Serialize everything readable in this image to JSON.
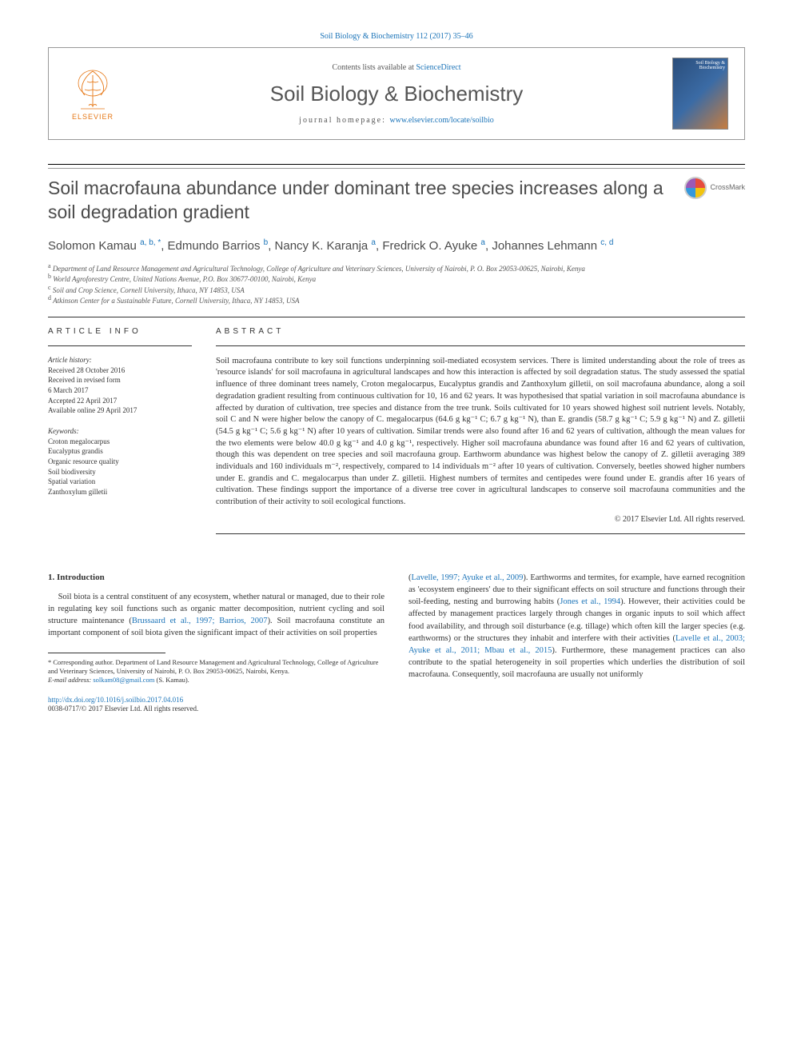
{
  "top_citation": "Soil Biology & Biochemistry 112 (2017) 35–46",
  "header": {
    "contents_prefix": "Contents lists available at ",
    "contents_link": "ScienceDirect",
    "journal_name": "Soil Biology & Biochemistry",
    "homepage_prefix": "journal homepage: ",
    "homepage_url": "www.elsevier.com/locate/soilbio",
    "publisher": "ELSEVIER",
    "cover_title": "Soil Biology & Biochemistry"
  },
  "crossmark_label": "CrossMark",
  "title": "Soil macrofauna abundance under dominant tree species increases along a soil degradation gradient",
  "authors_html": "Solomon Kamau <sup>a, b, *</sup>, Edmundo Barrios <sup>b</sup>, Nancy K. Karanja <sup>a</sup>, Fredrick O. Ayuke <sup>a</sup>, Johannes Lehmann <sup>c, d</sup>",
  "affiliations": [
    {
      "mark": "a",
      "text": "Department of Land Resource Management and Agricultural Technology, College of Agriculture and Veterinary Sciences, University of Nairobi, P. O. Box 29053-00625, Nairobi, Kenya"
    },
    {
      "mark": "b",
      "text": "World Agroforestry Centre, United Nations Avenue, P.O. Box 30677-00100, Nairobi, Kenya"
    },
    {
      "mark": "c",
      "text": "Soil and Crop Science, Cornell University, Ithaca, NY 14853, USA"
    },
    {
      "mark": "d",
      "text": "Atkinson Center for a Sustainable Future, Cornell University, Ithaca, NY 14853, USA"
    }
  ],
  "article_info": {
    "heading": "ARTICLE INFO",
    "history_label": "Article history:",
    "history": [
      "Received 28 October 2016",
      "Received in revised form",
      "6 March 2017",
      "Accepted 22 April 2017",
      "Available online 29 April 2017"
    ],
    "keywords_label": "Keywords:",
    "keywords": [
      "Croton megalocarpus",
      "Eucalyptus grandis",
      "Organic resource quality",
      "Soil biodiversity",
      "Spatial variation",
      "Zanthoxylum gilletii"
    ]
  },
  "abstract": {
    "heading": "ABSTRACT",
    "text": "Soil macrofauna contribute to key soil functions underpinning soil-mediated ecosystem services. There is limited understanding about the role of trees as 'resource islands' for soil macrofauna in agricultural landscapes and how this interaction is affected by soil degradation status. The study assessed the spatial influence of three dominant trees namely, Croton megalocarpus, Eucalyptus grandis and Zanthoxylum gilletii, on soil macrofauna abundance, along a soil degradation gradient resulting from continuous cultivation for 10, 16 and 62 years. It was hypothesised that spatial variation in soil macrofauna abundance is affected by duration of cultivation, tree species and distance from the tree trunk. Soils cultivated for 10 years showed highest soil nutrient levels. Notably, soil C and N were higher below the canopy of C. megalocarpus (64.6 g kg⁻¹ C; 6.7 g kg⁻¹ N), than E. grandis (58.7 g kg⁻¹ C; 5.9 g kg⁻¹ N) and Z. gilletii (54.5 g kg⁻¹ C; 5.6 g kg⁻¹ N) after 10 years of cultivation. Similar trends were also found after 16 and 62 years of cultivation, although the mean values for the two elements were below 40.0 g kg⁻¹ and 4.0 g kg⁻¹, respectively. Higher soil macrofauna abundance was found after 16 and 62 years of cultivation, though this was dependent on tree species and soil macrofauna group. Earthworm abundance was highest below the canopy of Z. gilletii averaging 389 individuals and 160 individuals m⁻², respectively, compared to 14 individuals m⁻² after 10 years of cultivation. Conversely, beetles showed higher numbers under E. grandis and C. megalocarpus than under Z. gilletii. Highest numbers of termites and centipedes were found under E. grandis after 16 years of cultivation. These findings support the importance of a diverse tree cover in agricultural landscapes to conserve soil macrofauna communities and the contribution of their activity to soil ecological functions.",
    "copyright": "© 2017 Elsevier Ltd. All rights reserved."
  },
  "body": {
    "section_heading": "1. Introduction",
    "col1_p1": "Soil biota is a central constituent of any ecosystem, whether natural or managed, due to their role in regulating key soil functions such as organic matter decomposition, nutrient cycling and soil structure maintenance (",
    "col1_cite1": "Brussaard et al., 1997; Barrios, 2007",
    "col1_p1b": "). Soil macrofauna constitute an important component of soil biota given the significant impact of their activities on soil properties",
    "col2_p1a": "(",
    "col2_cite1": "Lavelle, 1997; Ayuke et al., 2009",
    "col2_p1b": "). Earthworms and termites, for example, have earned recognition as 'ecosystem engineers' due to their significant effects on soil structure and functions through their soil-feeding, nesting and burrowing habits (",
    "col2_cite2": "Jones et al., 1994",
    "col2_p1c": "). However, their activities could be affected by management practices largely through changes in organic inputs to soil which affect food availability, and through soil disturbance (e.g. tillage) which often kill the larger species (e.g. earthworms) or the structures they inhabit and interfere with their activities (",
    "col2_cite3": "Lavelle et al., 2003; Ayuke et al., 2011; Mbau et al., 2015",
    "col2_p1d": "). Furthermore, these management practices can also contribute to the spatial heterogeneity in soil properties which underlies the distribution of soil macrofauna. Consequently, soil macrofauna are usually not uniformly"
  },
  "footnote": {
    "corr": "* Corresponding author. Department of Land Resource Management and Agricultural Technology, College of Agriculture and Veterinary Sciences, University of Nairobi, P. O. Box 29053-00625, Nairobi, Kenya.",
    "email_label": "E-mail address: ",
    "email": "solkam08@gmail.com",
    "email_suffix": " (S. Kamau)."
  },
  "doi": {
    "url": "http://dx.doi.org/10.1016/j.soilbio.2017.04.016",
    "issn_line": "0038-0717/© 2017 Elsevier Ltd. All rights reserved."
  },
  "colors": {
    "link": "#1a73b8",
    "elsevier_orange": "#e67817",
    "text": "#333333"
  }
}
